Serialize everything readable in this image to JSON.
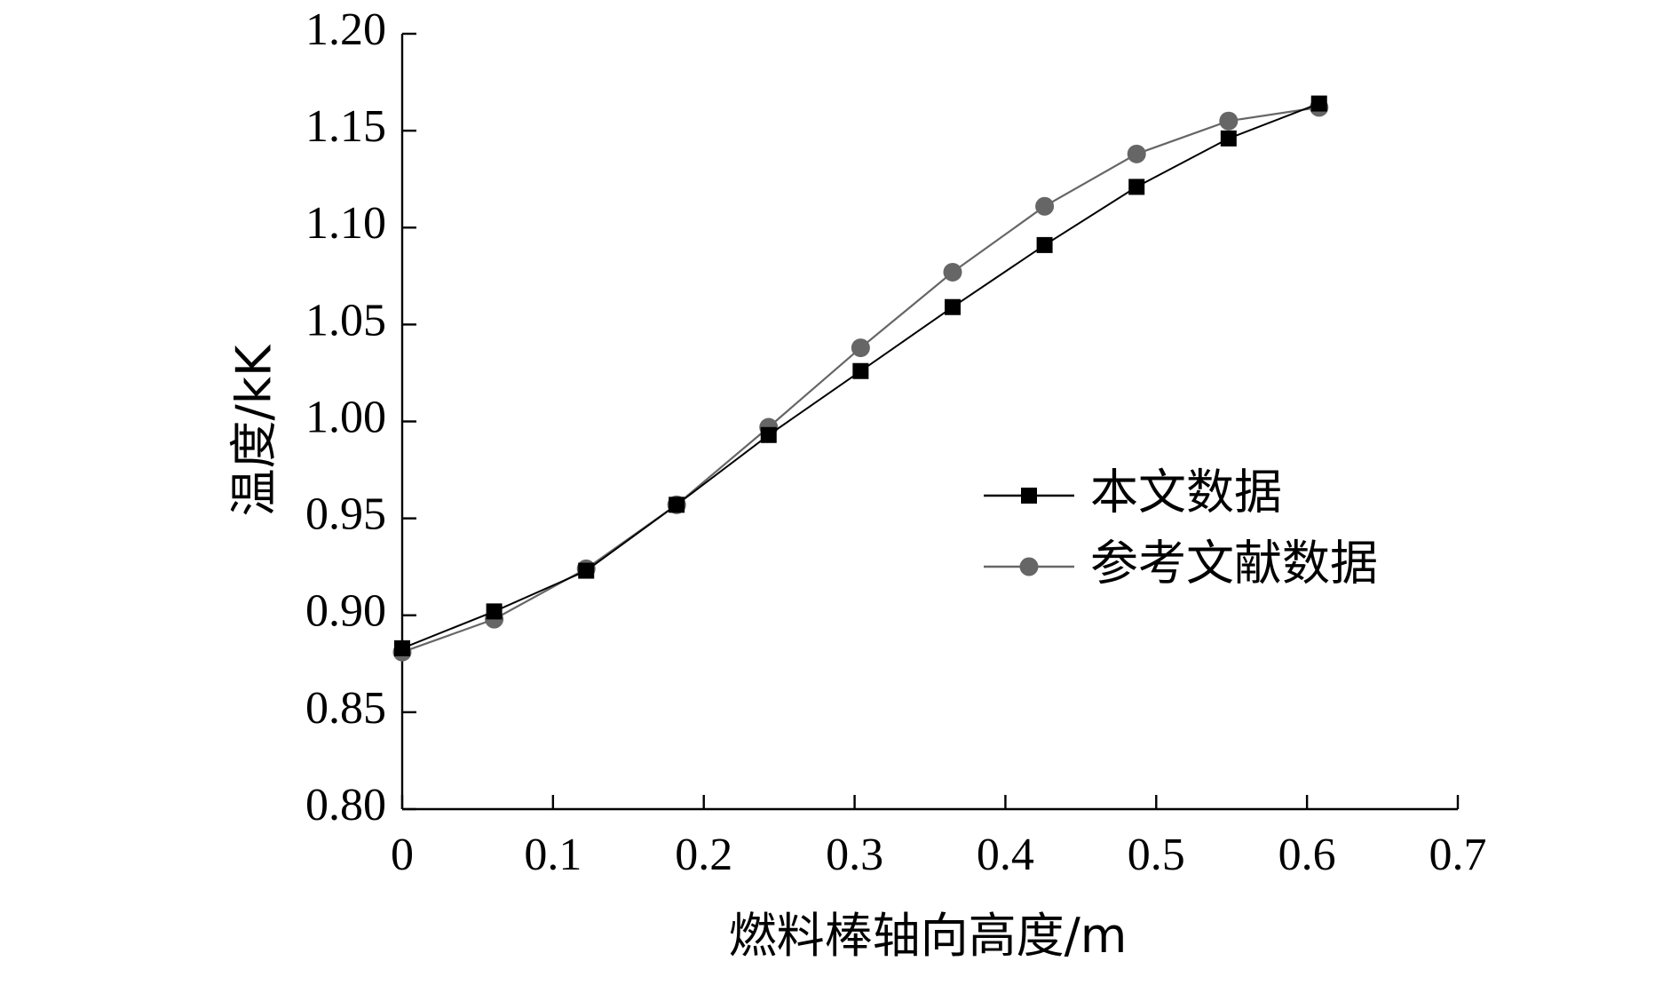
{
  "chart_data": {
    "type": "line",
    "title": "",
    "xlabel": "燃料棒轴向高度/m",
    "ylabel": "温度/kK",
    "xlim": [
      0,
      0.7
    ],
    "ylim": [
      0.8,
      1.2
    ],
    "x_ticks": [
      "0",
      "0.1",
      "0.2",
      "0.3",
      "0.4",
      "0.5",
      "0.6",
      "0.7"
    ],
    "y_ticks": [
      "0.80",
      "0.85",
      "0.90",
      "0.95",
      "1.00",
      "1.05",
      "1.10",
      "1.15",
      "1.20"
    ],
    "grid": false,
    "legend_position": "right",
    "series": [
      {
        "name": "本文数据",
        "marker": "square",
        "color": "#000000",
        "x": [
          0,
          0.061,
          0.122,
          0.182,
          0.243,
          0.304,
          0.365,
          0.426,
          0.487,
          0.548,
          0.608
        ],
        "y": [
          0.883,
          0.902,
          0.923,
          0.957,
          0.993,
          1.026,
          1.059,
          1.091,
          1.121,
          1.146,
          1.164
        ]
      },
      {
        "name": "参考文献数据",
        "marker": "circle",
        "color": "#666666",
        "x": [
          0,
          0.061,
          0.122,
          0.182,
          0.243,
          0.304,
          0.365,
          0.426,
          0.487,
          0.548,
          0.608
        ],
        "y": [
          0.881,
          0.898,
          0.924,
          0.957,
          0.997,
          1.038,
          1.077,
          1.111,
          1.138,
          1.155,
          1.162
        ]
      }
    ]
  }
}
